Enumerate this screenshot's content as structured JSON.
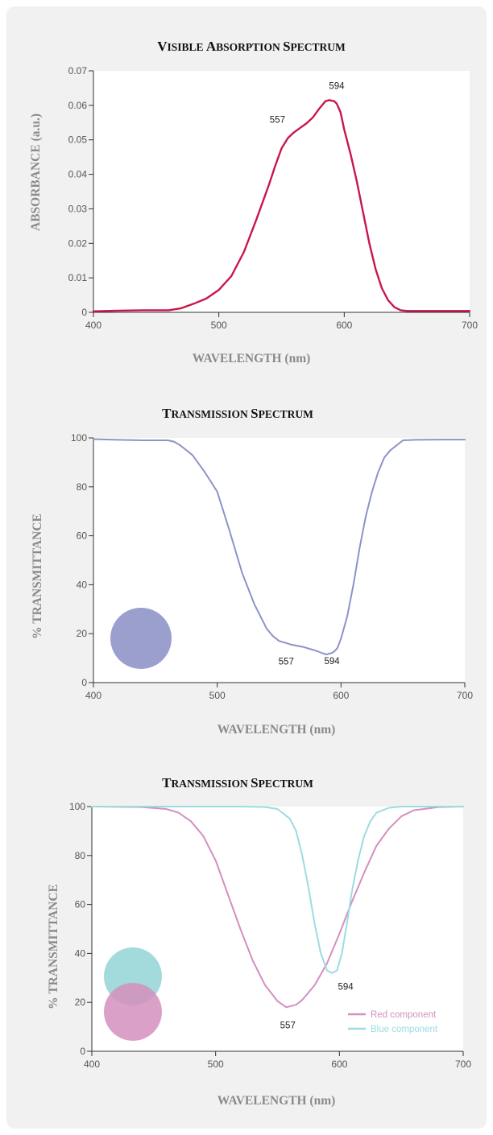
{
  "chart_data": [
    {
      "type": "line",
      "title": "Visible Absorption Spectrum",
      "xlabel": "WAVELENGTH (nm)",
      "ylabel": "ABSORBANCE (a.u.)",
      "xlim": [
        400,
        700
      ],
      "ylim": [
        0,
        0.07
      ],
      "xticks": [
        400,
        500,
        600,
        700
      ],
      "yticks": [
        0,
        0.01,
        0.02,
        0.03,
        0.04,
        0.05,
        0.06,
        0.07
      ],
      "xtick_labels": [
        "400",
        "500",
        "600",
        "700"
      ],
      "ytick_labels": [
        "0",
        "0.01",
        "0.02",
        "0.03",
        "0.04",
        "0.05",
        "0.06",
        "0.07"
      ],
      "grid": false,
      "series": [
        {
          "color": "#c8174a",
          "x": [
            400,
            420,
            440,
            460,
            470,
            480,
            490,
            500,
            510,
            520,
            530,
            540,
            545,
            550,
            555,
            557,
            560,
            565,
            570,
            575,
            580,
            585,
            588,
            592,
            594,
            597,
            600,
            605,
            610,
            615,
            620,
            625,
            630,
            635,
            640,
            645,
            650,
            660,
            680,
            700
          ],
          "y": [
            0.0003,
            0.0005,
            0.0006,
            0.0006,
            0.0012,
            0.0025,
            0.004,
            0.0065,
            0.0105,
            0.0175,
            0.027,
            0.037,
            0.0425,
            0.0475,
            0.0505,
            0.0512,
            0.0522,
            0.0535,
            0.0548,
            0.0565,
            0.059,
            0.0612,
            0.0615,
            0.0612,
            0.0605,
            0.058,
            0.053,
            0.046,
            0.038,
            0.029,
            0.02,
            0.0125,
            0.007,
            0.0035,
            0.0015,
            0.0006,
            0.0004,
            0.0004,
            0.0004,
            0.0004
          ]
        }
      ],
      "annotations": [
        {
          "text": "557",
          "x": 557,
          "y": 0.0512
        },
        {
          "text": "594",
          "x": 594,
          "y": 0.0615
        }
      ]
    },
    {
      "type": "line",
      "title": "Transmission Spectrum",
      "xlabel": "WAVELENGTH (nm)",
      "ylabel": "% TRANSMITTANCE",
      "xlim": [
        400,
        700
      ],
      "ylim": [
        0,
        100
      ],
      "xticks": [
        400,
        500,
        600,
        700
      ],
      "yticks": [
        0,
        20,
        40,
        60,
        80,
        100
      ],
      "xtick_labels": [
        "400",
        "500",
        "600",
        "700"
      ],
      "ytick_labels": [
        "0",
        "20",
        "40",
        "60",
        "80",
        "100"
      ],
      "grid": false,
      "series": [
        {
          "color": "#8d93c7",
          "x": [
            400,
            420,
            440,
            460,
            465,
            470,
            480,
            490,
            500,
            510,
            520,
            530,
            540,
            545,
            550,
            557,
            560,
            570,
            580,
            585,
            588,
            592,
            594,
            597,
            600,
            605,
            610,
            615,
            620,
            625,
            630,
            635,
            640,
            645,
            650,
            660,
            680,
            700
          ],
          "y": [
            99.5,
            99.2,
            99.0,
            99.0,
            98.5,
            97,
            93,
            86,
            78,
            62,
            45,
            32,
            22,
            19,
            17,
            16,
            15.5,
            14.5,
            13,
            12,
            11.5,
            12,
            12.5,
            14,
            18,
            27,
            40,
            55,
            68,
            78,
            86,
            92,
            95,
            97,
            99,
            99.2,
            99.3,
            99.3
          ]
        }
      ],
      "swatches": [
        {
          "color": "#9a9fcd"
        }
      ],
      "annotations": [
        {
          "text": "557",
          "x": 557,
          "y": 16
        },
        {
          "text": "594",
          "x": 594,
          "y": 12.5
        }
      ]
    },
    {
      "type": "line",
      "title": "Transmission Spectrum",
      "xlabel": "WAVELENGTH (nm)",
      "ylabel": "% TRANSMITTANCE",
      "xlim": [
        400,
        700
      ],
      "ylim": [
        0,
        100
      ],
      "xticks": [
        400,
        500,
        600,
        700
      ],
      "yticks": [
        0,
        20,
        40,
        60,
        80,
        100
      ],
      "xtick_labels": [
        "400",
        "500",
        "600",
        "700"
      ],
      "ytick_labels": [
        "0",
        "20",
        "40",
        "60",
        "80",
        "100"
      ],
      "grid": false,
      "legend": "bottom-right",
      "series": [
        {
          "name": "Red component",
          "color": "#d48fc0",
          "x": [
            400,
            440,
            460,
            470,
            480,
            490,
            500,
            510,
            520,
            530,
            540,
            550,
            557,
            565,
            570,
            580,
            590,
            600,
            610,
            620,
            630,
            640,
            650,
            660,
            680,
            700
          ],
          "y": [
            100,
            99.8,
            99,
            97.5,
            94,
            88,
            78,
            64,
            50,
            37,
            27,
            20.5,
            18,
            19,
            21,
            27,
            36,
            48,
            61,
            73,
            84,
            91,
            96,
            98.5,
            99.8,
            100
          ],
          "marker": "none"
        },
        {
          "name": "Blue component",
          "color": "#99dde3",
          "x": [
            400,
            520,
            540,
            550,
            560,
            565,
            570,
            575,
            580,
            585,
            590,
            594,
            598,
            602,
            606,
            610,
            615,
            620,
            625,
            630,
            640,
            650,
            700
          ],
          "y": [
            100,
            100,
            99.8,
            99,
            95,
            90,
            80,
            67,
            52,
            40,
            33,
            32,
            33,
            40,
            52,
            65,
            78,
            88,
            94,
            97.5,
            99.5,
            100,
            100
          ]
        }
      ],
      "swatches": [
        {
          "color": "#93d3d6"
        },
        {
          "color": "#d58fbd"
        }
      ],
      "annotations": [
        {
          "text": "557",
          "x": 557,
          "y": 18
        },
        {
          "text": "594",
          "x": 594,
          "y": 32
        }
      ]
    }
  ]
}
